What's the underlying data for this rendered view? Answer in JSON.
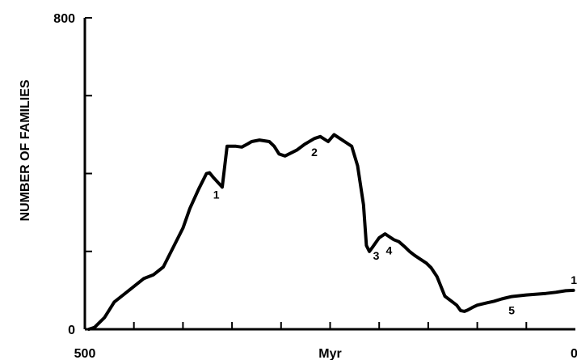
{
  "chart_data": {
    "type": "line",
    "title": "",
    "xlabel": "Myr",
    "ylabel": "NUMBER OF FAMILIES",
    "xlim": [
      500,
      0
    ],
    "ylim": [
      0,
      800
    ],
    "x_tick_labels": [
      {
        "value": 500,
        "label": "500"
      },
      {
        "value": 250,
        "label": "Myr"
      },
      {
        "value": 0,
        "label": "0"
      }
    ],
    "y_tick_labels": [
      {
        "value": 800,
        "label": "800"
      },
      {
        "value": 0,
        "label": "0"
      }
    ],
    "minor_x_ticks": [
      450,
      400,
      350,
      300,
      250,
      200,
      150,
      100,
      50
    ],
    "minor_y_ticks": [
      200,
      400,
      600
    ],
    "series": [
      {
        "values_x": [
          496,
          490,
          480,
          470,
          460,
          450,
          440,
          430,
          420,
          410,
          400,
          393,
          384,
          376,
          373,
          369,
          360,
          355,
          346,
          340,
          334,
          330,
          322,
          312,
          307,
          302,
          296,
          284,
          276,
          266,
          260,
          252,
          246,
          240,
          234,
          228,
          222,
          216,
          213,
          210,
          207,
          200,
          194,
          191,
          185,
          180,
          174,
          169,
          164,
          158,
          152,
          147,
          141,
          133,
          121,
          117,
          113,
          110,
          105,
          100,
          90,
          83,
          75,
          70,
          65,
          50,
          30,
          20,
          10,
          2
        ],
        "values_y": [
          0,
          5,
          30,
          70,
          90,
          110,
          130,
          140,
          160,
          210,
          260,
          310,
          360,
          400,
          402,
          390,
          365,
          470,
          470,
          468,
          476,
          482,
          486,
          482,
          470,
          450,
          445,
          460,
          475,
          490,
          495,
          482,
          500,
          490,
          480,
          470,
          420,
          320,
          215,
          200,
          210,
          235,
          245,
          240,
          230,
          225,
          212,
          200,
          190,
          180,
          170,
          158,
          135,
          85,
          62,
          48,
          46,
          49,
          56,
          62,
          68,
          72,
          78,
          81,
          84,
          88,
          92,
          95,
          99,
          100
        ]
      }
    ],
    "extinction_events": [
      {
        "label": "1",
        "x": 366
      },
      {
        "label": "2",
        "x": 266
      },
      {
        "label": "3",
        "x": 203
      },
      {
        "label": "4",
        "x": 190
      },
      {
        "label": "5",
        "x": 65
      },
      {
        "label": "1",
        "x": 0
      }
    ]
  }
}
